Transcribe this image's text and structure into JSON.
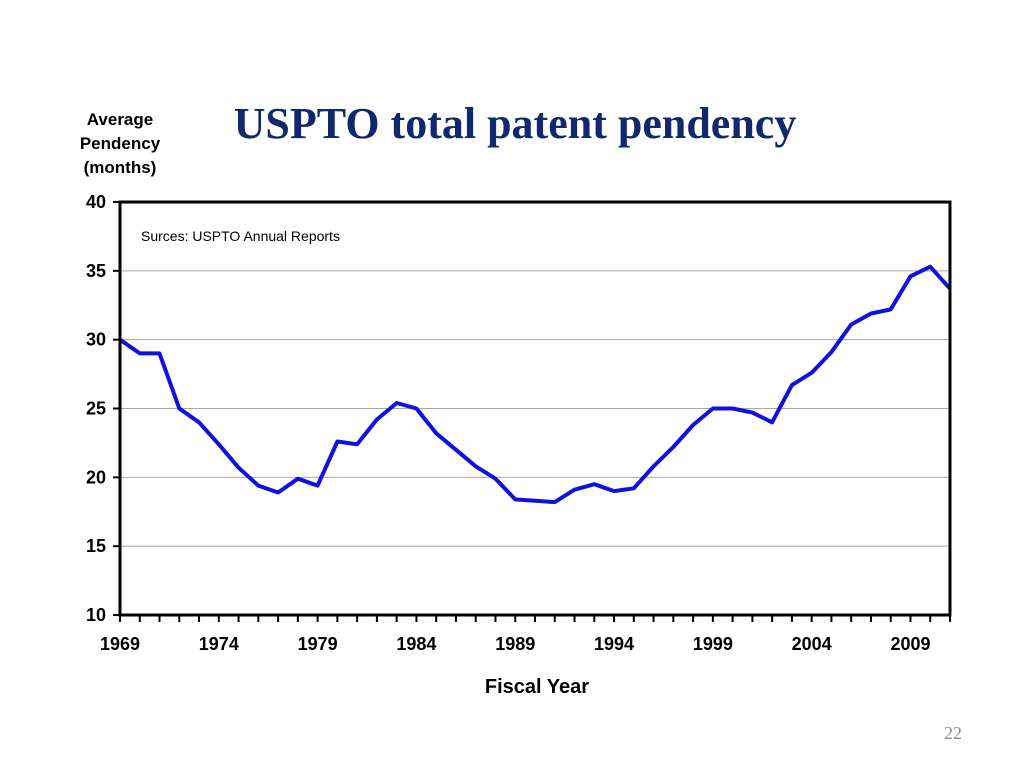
{
  "slide": {
    "title": "USPTO total patent pendency",
    "page_number": "22"
  },
  "chart_data": {
    "type": "line",
    "title": "USPTO total patent pendency",
    "ylabel_lines": [
      "Average",
      "Pendency",
      "(months)"
    ],
    "xlabel": "Fiscal Year",
    "annotation": "Surces: USPTO Annual Reports",
    "xlim": [
      1969,
      2011
    ],
    "ylim": [
      10,
      40
    ],
    "y_ticks": [
      10,
      15,
      20,
      25,
      30,
      35,
      40
    ],
    "x_ticks": [
      1969,
      1974,
      1979,
      1984,
      1989,
      1994,
      1999,
      2004,
      2009
    ],
    "grid": true,
    "line_color": "#1010e0",
    "series": [
      {
        "x": [
          1969,
          1970,
          1971,
          1972,
          1973,
          1974,
          1975,
          1976,
          1977,
          1978,
          1979,
          1980,
          1981,
          1982,
          1983,
          1984,
          1985,
          1986,
          1987,
          1988,
          1989,
          1990,
          1991,
          1992,
          1993,
          1994,
          1995,
          1996,
          1997,
          1998,
          1999,
          2000,
          2001,
          2002,
          2003,
          2004,
          2005,
          2006,
          2007,
          2008,
          2009,
          2010,
          2011
        ],
        "values": [
          30.0,
          29.0,
          29.0,
          25.0,
          24.0,
          22.4,
          20.7,
          19.4,
          18.9,
          19.9,
          19.4,
          22.6,
          22.4,
          24.2,
          25.4,
          25.0,
          23.2,
          22.0,
          20.8,
          19.9,
          18.4,
          18.3,
          18.2,
          19.1,
          19.5,
          19.0,
          19.2,
          20.8,
          22.2,
          23.8,
          25.0,
          25.0,
          24.7,
          24.0,
          26.7,
          27.6,
          29.1,
          31.1,
          31.9,
          32.2,
          34.6,
          35.3,
          33.7
        ]
      }
    ]
  }
}
